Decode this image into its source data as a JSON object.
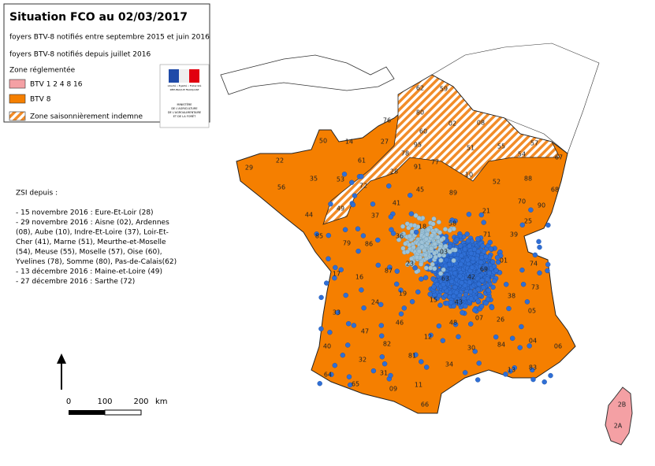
{
  "header": {
    "title": "Situation FCO au 02/03/2017",
    "lines": [
      "foyers BTV-8 notifiés entre septembre 2015 et juin 2016",
      "foyers BTV-8 notifiés depuis juillet 2016"
    ]
  },
  "legend": {
    "heading": "Zone réglementée",
    "items": [
      "BTV 1 2 4 8 16",
      "BTV 8",
      "Zone saisonnièrement indemne"
    ]
  },
  "logo": {
    "motto": "Liberté • Égalité • Fraternité",
    "republic": "RÉPUBLIQUE FRANÇAISE",
    "ministry": [
      "MINISTÈRE",
      "DE L'AGRICULTURE",
      "DE L'AGROALIMENTAIRE",
      "ET DE LA FORÊT"
    ]
  },
  "zsi": {
    "heading": "ZSI depuis :",
    "lines": [
      "- 15 novembre 2016 : Eure-Et-Loir (28)",
      "- 29 novembre 2016 : Aisne (02), Ardennes",
      "(08), Aube (10), Indre-Et-Loire (37), Loir-Et-",
      "Cher (41), Marne (51), Meurthe-et-Moselle",
      "(54), Meuse (55), Moselle (57), Oise (60),",
      "Yvelines (78), Somme (80), Pas-de-Calais(62)",
      "- 13 décembre 2016 : Maine-et-Loire (49)",
      "- 27 décembre 2016 : Sarthe (72)"
    ]
  },
  "scale": {
    "labels": [
      "0",
      "100",
      "200",
      "km"
    ]
  },
  "departments": [
    "62",
    "59",
    "80",
    "76",
    "02",
    "08",
    "60",
    "50",
    "14",
    "27",
    "51",
    "55",
    "57",
    "29",
    "22",
    "61",
    "78",
    "95",
    "91",
    "77",
    "54",
    "67",
    "35",
    "53",
    "72",
    "28",
    "10",
    "52",
    "88",
    "68",
    "56",
    "45",
    "89",
    "41",
    "70",
    "49",
    "37",
    "21",
    "44",
    "18",
    "58",
    "90",
    "25",
    "85",
    "79",
    "86",
    "36",
    "71",
    "39",
    "03",
    "23",
    "17",
    "16",
    "87",
    "01",
    "74",
    "63",
    "42",
    "69",
    "19",
    "73",
    "15",
    "43",
    "38",
    "24",
    "33",
    "46",
    "07",
    "26",
    "05",
    "48",
    "47",
    "12",
    "04",
    "06",
    "82",
    "84",
    "30",
    "40",
    "81",
    "32",
    "34",
    "13",
    "83",
    "31",
    "64",
    "65",
    "09",
    "11",
    "66",
    "2B",
    "2A"
  ]
}
